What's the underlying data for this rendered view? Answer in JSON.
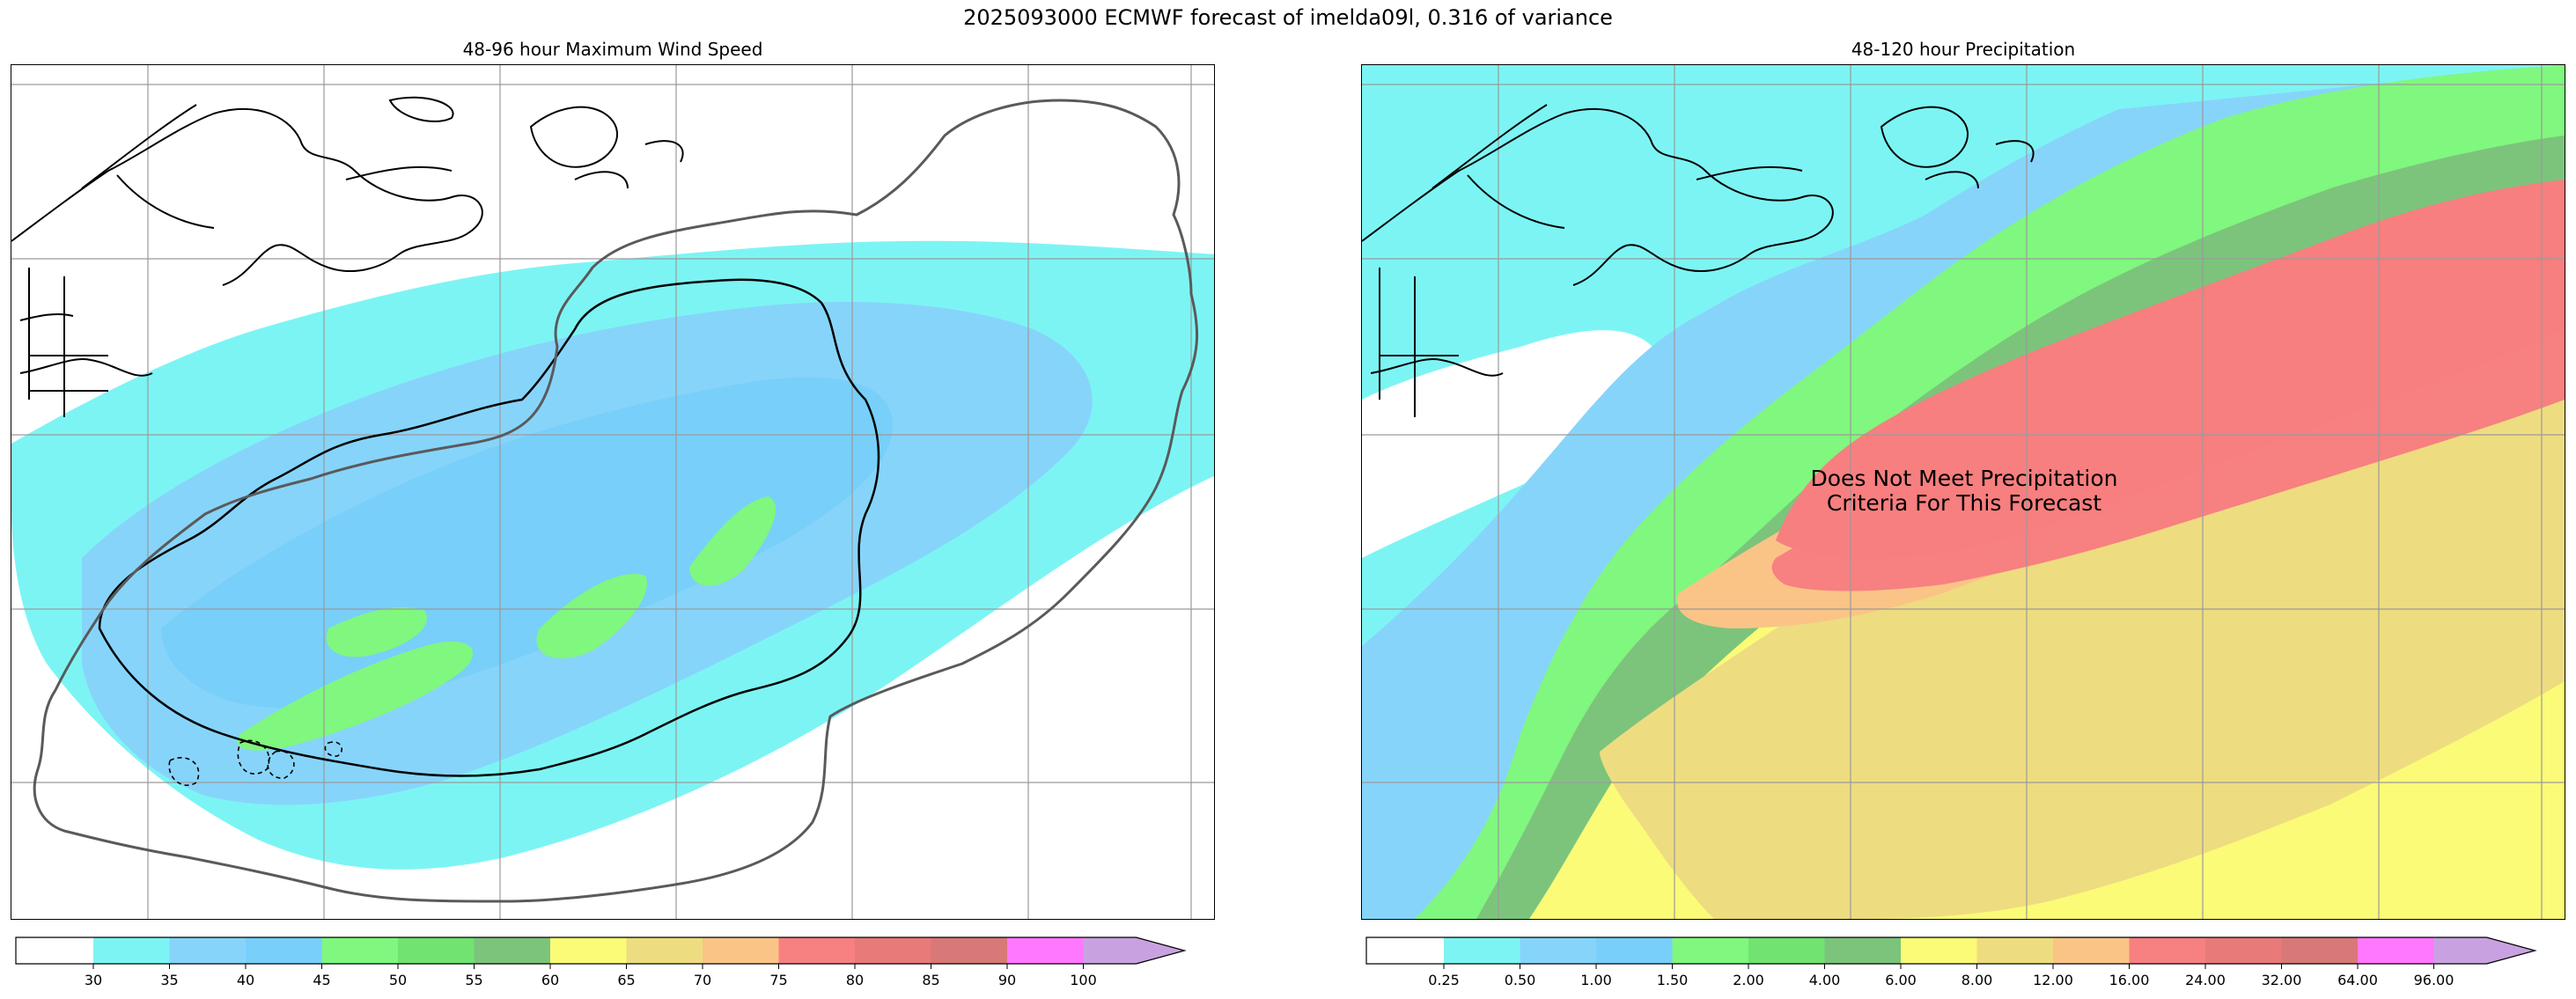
{
  "figure": {
    "suptitle": "2025093000 ECMWF forecast of imelda09l, 0.316 of variance"
  },
  "panels": {
    "wind": {
      "title": "48-96 hour Maximum Wind Speed",
      "colorbar": {
        "labels": [
          "30",
          "35",
          "40",
          "45",
          "50",
          "55",
          "60",
          "65",
          "70",
          "75",
          "80",
          "85",
          "90",
          "100"
        ],
        "colors": [
          "#7df4f4",
          "#87d4fa",
          "#78cffa",
          "#80f77e",
          "#70e370",
          "#7cc47c",
          "#fbfb78",
          "#eedc80",
          "#fac487",
          "#f78080",
          "#e87a7a",
          "#d87878",
          "#ff78ff",
          "#c8a2e0"
        ]
      }
    },
    "precip": {
      "title": "48-120 hour Precipitation",
      "note_line1": "Does Not Meet Precipitation",
      "note_line2": "Criteria For This Forecast",
      "colorbar": {
        "labels": [
          "0.25",
          "0.50",
          "1.00",
          "1.50",
          "2.00",
          "4.00",
          "6.00",
          "8.00",
          "12.00",
          "16.00",
          "24.00",
          "32.00",
          "64.00",
          "96.00"
        ],
        "colors": [
          "#7df4f4",
          "#87d4fa",
          "#78cffa",
          "#80f77e",
          "#70e370",
          "#7cc47c",
          "#fbfb78",
          "#eedc80",
          "#fac487",
          "#f78080",
          "#e87a7a",
          "#d87878",
          "#ff78ff",
          "#c8a2e0"
        ]
      }
    }
  }
}
